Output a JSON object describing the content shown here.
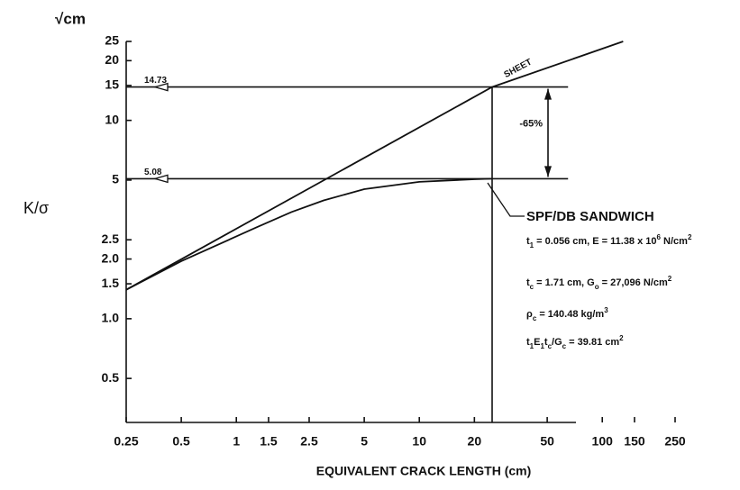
{
  "chart_data": {
    "type": "line",
    "ylabel": "K/σ",
    "y_unit": "√cm",
    "xlabel": "EQUIVALENT CRACK LENGTH  (cm)",
    "xscale": "log",
    "yscale": "log",
    "xlim": [
      0.25,
      250
    ],
    "ylim": [
      0.3,
      25
    ],
    "xticks": [
      0.25,
      0.5,
      1,
      1.5,
      2.5,
      5,
      10,
      20,
      50,
      100,
      150,
      250
    ],
    "yticks": [
      0.5,
      {
        "value": 1,
        "label": "1.0"
      },
      1.5,
      {
        "value": 2,
        "label": "2.0"
      },
      2.5,
      5,
      10,
      15,
      20,
      25
    ],
    "series": [
      {
        "name": "SHEET",
        "color": "#111111",
        "x": [
          0.25,
          25,
          130
        ],
        "values": [
          1.4,
          14.73,
          25
        ]
      },
      {
        "name": "SPF/DB SANDWICH",
        "color": "#111111",
        "x": [
          0.25,
          0.5,
          1,
          1.3,
          2,
          3,
          5,
          10,
          20,
          25
        ],
        "values": [
          1.4,
          1.95,
          2.6,
          2.9,
          3.45,
          3.95,
          4.5,
          4.9,
          5.05,
          5.08
        ]
      }
    ],
    "reference_lines": [
      {
        "value": 14.73,
        "x_end": 65
      },
      {
        "value": 5.08,
        "x_end": 65
      }
    ],
    "vline": 25,
    "annotation": "-65%",
    "notes": [
      [
        {
          "text": "t"
        },
        {
          "sub": "1"
        },
        {
          "text": " = 0.056 cm, E = 11.38 x 10"
        },
        {
          "sup": "6"
        },
        {
          "text": " N/cm"
        },
        {
          "sup": "2"
        }
      ],
      [
        {
          "text": "t"
        },
        {
          "sub": "c"
        },
        {
          "text": " = 1.71 cm, G"
        },
        {
          "sub": "o"
        },
        {
          "text": " = 27,096 N/cm"
        },
        {
          "sup": "2"
        }
      ],
      [
        {
          "text": "ρ"
        },
        {
          "sub": "c"
        },
        {
          "text": " = 140.48 kg/m"
        },
        {
          "sup": "3"
        }
      ],
      [
        {
          "text": "t"
        },
        {
          "sub": "1"
        },
        {
          "text": "E"
        },
        {
          "sub": "1"
        },
        {
          "text": "t"
        },
        {
          "sub": "c"
        },
        {
          "text": "/G"
        },
        {
          "sub": "c"
        },
        {
          "text": " = 39.81 cm"
        },
        {
          "sup": "2"
        }
      ]
    ]
  }
}
